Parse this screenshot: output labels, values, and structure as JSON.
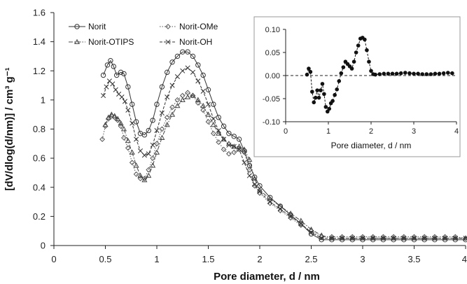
{
  "chart_data": [
    {
      "type": "line",
      "xlabel": "Pore diameter, d / nm",
      "ylabel": "[dV/dlog(d/nm)] / cm³ g⁻¹",
      "xlim": [
        0,
        4
      ],
      "ylim": [
        0,
        1.6
      ],
      "xticks": [
        "0",
        "0.5",
        "1",
        "1.5",
        "2",
        "2.5",
        "3",
        "3.5",
        "4"
      ],
      "yticks": [
        "0",
        "0.2",
        "0.4",
        "0.6",
        "0.8",
        "1",
        "1.2",
        "1.4",
        "1.6"
      ],
      "grid": false,
      "legend_placement": "top-left",
      "series": [
        {
          "name": "Norit",
          "color": "#333333",
          "marker": "circle",
          "line_style": "solid",
          "x": [
            0.48,
            0.52,
            0.55,
            0.58,
            0.61,
            0.65,
            0.68,
            0.72,
            0.76,
            0.8,
            0.84,
            0.88,
            0.92,
            0.96,
            1.0,
            1.05,
            1.1,
            1.15,
            1.2,
            1.25,
            1.3,
            1.35,
            1.4,
            1.45,
            1.5,
            1.55,
            1.6,
            1.65,
            1.7,
            1.75,
            1.8,
            1.85,
            1.9,
            1.95,
            2.0,
            2.1,
            2.2,
            2.3,
            2.4,
            2.5,
            2.6,
            2.7,
            2.8,
            2.9,
            3.0,
            3.1,
            3.2,
            3.3,
            3.4,
            3.5,
            3.6,
            3.7,
            3.8,
            3.9,
            4.0
          ],
          "y": [
            1.17,
            1.24,
            1.27,
            1.23,
            1.17,
            1.19,
            1.18,
            1.09,
            0.97,
            0.85,
            0.77,
            0.76,
            0.79,
            0.86,
            0.97,
            1.09,
            1.19,
            1.26,
            1.3,
            1.33,
            1.33,
            1.3,
            1.24,
            1.17,
            1.07,
            0.97,
            0.88,
            0.82,
            0.77,
            0.75,
            0.73,
            0.65,
            0.55,
            0.47,
            0.41,
            0.33,
            0.27,
            0.21,
            0.15,
            0.08,
            0.04,
            0.04,
            0.04,
            0.04,
            0.04,
            0.04,
            0.04,
            0.04,
            0.04,
            0.04,
            0.04,
            0.04,
            0.04,
            0.04,
            0.04
          ]
        },
        {
          "name": "Norit-OMe",
          "color": "#555555",
          "marker": "diamond",
          "line_style": "dotted",
          "x": [
            0.47,
            0.5,
            0.53,
            0.56,
            0.59,
            0.62,
            0.65,
            0.68,
            0.72,
            0.76,
            0.8,
            0.84,
            0.88,
            0.92,
            0.96,
            1.0,
            1.05,
            1.1,
            1.15,
            1.2,
            1.25,
            1.3,
            1.35,
            1.4,
            1.45,
            1.5,
            1.55,
            1.6,
            1.65,
            1.7,
            1.75,
            1.8,
            1.85,
            1.9,
            1.95,
            2.0,
            2.1,
            2.2,
            2.3,
            2.4,
            2.5,
            2.6,
            2.7,
            2.8,
            2.9,
            3.0,
            3.1,
            3.2,
            3.3,
            3.4,
            3.5,
            3.6,
            3.7,
            3.8,
            3.9,
            4.0
          ],
          "y": [
            0.73,
            0.82,
            0.87,
            0.89,
            0.88,
            0.86,
            0.82,
            0.74,
            0.67,
            0.57,
            0.49,
            0.46,
            0.46,
            0.52,
            0.6,
            0.7,
            0.8,
            0.88,
            0.95,
            1.0,
            1.03,
            1.05,
            1.03,
            0.98,
            0.93,
            0.85,
            0.77,
            0.71,
            0.66,
            0.63,
            0.64,
            0.66,
            0.64,
            0.52,
            0.41,
            0.36,
            0.29,
            0.24,
            0.19,
            0.14,
            0.1,
            0.06,
            0.06,
            0.06,
            0.06,
            0.06,
            0.06,
            0.06,
            0.06,
            0.06,
            0.06,
            0.06,
            0.06,
            0.06,
            0.06,
            0.05
          ]
        },
        {
          "name": "Norit-OTIPS",
          "color": "#444444",
          "marker": "triangle",
          "line_style": "dashdot",
          "x": [
            0.5,
            0.53,
            0.56,
            0.59,
            0.62,
            0.65,
            0.68,
            0.72,
            0.76,
            0.8,
            0.84,
            0.88,
            0.92,
            0.96,
            1.0,
            1.05,
            1.1,
            1.15,
            1.2,
            1.25,
            1.3,
            1.35,
            1.4,
            1.45,
            1.5,
            1.55,
            1.6,
            1.65,
            1.7,
            1.75,
            1.8,
            1.85,
            1.9,
            1.95,
            2.0,
            2.1,
            2.2,
            2.3,
            2.4,
            2.5,
            2.6,
            2.7,
            2.8,
            2.9,
            3.0,
            3.1,
            3.2,
            3.3,
            3.4,
            3.5,
            3.6,
            3.7,
            3.8,
            3.9,
            4.0
          ],
          "y": [
            0.83,
            0.88,
            0.9,
            0.89,
            0.87,
            0.84,
            0.8,
            0.72,
            0.64,
            0.55,
            0.48,
            0.45,
            0.48,
            0.55,
            0.64,
            0.74,
            0.83,
            0.9,
            0.96,
            1.0,
            1.02,
            1.03,
            1.0,
            0.96,
            0.9,
            0.83,
            0.77,
            0.73,
            0.7,
            0.68,
            0.68,
            0.66,
            0.59,
            0.46,
            0.38,
            0.32,
            0.27,
            0.22,
            0.17,
            0.11,
            0.07,
            0.05,
            0.05,
            0.05,
            0.05,
            0.05,
            0.05,
            0.05,
            0.05,
            0.05,
            0.05,
            0.05,
            0.05,
            0.05,
            0.05
          ]
        },
        {
          "name": "Norit-OH",
          "color": "#333333",
          "marker": "cross",
          "line_style": "dashed",
          "x": [
            0.48,
            0.51,
            0.54,
            0.57,
            0.6,
            0.63,
            0.66,
            0.69,
            0.72,
            0.76,
            0.8,
            0.84,
            0.88,
            0.92,
            0.96,
            1.0,
            1.05,
            1.1,
            1.15,
            1.2,
            1.25,
            1.3,
            1.35,
            1.4,
            1.45,
            1.5,
            1.55,
            1.6,
            1.65,
            1.7,
            1.75,
            1.8,
            1.85,
            1.9,
            1.95,
            2.0,
            2.1,
            2.2,
            2.3,
            2.4,
            2.5,
            2.6,
            2.7,
            2.8,
            2.9,
            3.0,
            3.1,
            3.2,
            3.3,
            3.4,
            3.5,
            3.6,
            3.7,
            3.8,
            3.9,
            4.0
          ],
          "y": [
            1.03,
            1.09,
            1.13,
            1.11,
            1.07,
            1.04,
            1.02,
            0.99,
            0.93,
            0.84,
            0.73,
            0.65,
            0.62,
            0.63,
            0.69,
            0.79,
            0.91,
            1.02,
            1.1,
            1.16,
            1.2,
            1.22,
            1.19,
            1.13,
            1.06,
            0.97,
            0.87,
            0.79,
            0.73,
            0.69,
            0.68,
            0.66,
            0.57,
            0.48,
            0.42,
            0.37,
            0.3,
            0.25,
            0.2,
            0.15,
            0.09,
            0.05,
            0.05,
            0.05,
            0.05,
            0.05,
            0.05,
            0.05,
            0.05,
            0.05,
            0.05,
            0.05,
            0.05,
            0.05,
            0.05,
            0.05
          ]
        }
      ]
    },
    {
      "type": "scatter",
      "inset": true,
      "xlabel": "Pore diameter, d / nm",
      "ylabel": "",
      "xlim": [
        0,
        4
      ],
      "ylim": [
        -0.1,
        0.1
      ],
      "xticks": [
        "0",
        "1",
        "2",
        "3",
        "4"
      ],
      "yticks": [
        "-0.10",
        "-0.05",
        "0.00",
        "0.05",
        "0.10"
      ],
      "zero_line": true,
      "series": [
        {
          "color": "#111111",
          "x": [
            0.5,
            0.54,
            0.58,
            0.62,
            0.66,
            0.7,
            0.74,
            0.78,
            0.82,
            0.86,
            0.9,
            0.94,
            0.98,
            1.02,
            1.06,
            1.1,
            1.15,
            1.2,
            1.25,
            1.3,
            1.35,
            1.4,
            1.45,
            1.5,
            1.55,
            1.6,
            1.65,
            1.7,
            1.75,
            1.8,
            1.85,
            1.9,
            1.95,
            2.0,
            2.05,
            2.1,
            2.2,
            2.3,
            2.4,
            2.5,
            2.6,
            2.7,
            2.8,
            2.9,
            3.0,
            3.1,
            3.2,
            3.3,
            3.4,
            3.5,
            3.6,
            3.7,
            3.8,
            3.9
          ],
          "y": [
            0.002,
            0.015,
            0.008,
            -0.035,
            -0.058,
            -0.048,
            -0.032,
            -0.048,
            -0.032,
            -0.018,
            -0.04,
            -0.068,
            -0.078,
            -0.072,
            -0.06,
            -0.055,
            -0.042,
            -0.03,
            -0.012,
            0.005,
            0.018,
            0.03,
            0.025,
            0.02,
            0.015,
            0.03,
            0.05,
            0.065,
            0.08,
            0.082,
            0.078,
            0.055,
            0.03,
            0.01,
            0.003,
            0.002,
            0.003,
            0.004,
            0.004,
            0.004,
            0.004,
            0.005,
            0.006,
            0.005,
            0.004,
            0.004,
            0.003,
            0.003,
            0.003,
            0.004,
            0.004,
            0.005,
            0.006,
            0.005
          ]
        }
      ]
    }
  ]
}
